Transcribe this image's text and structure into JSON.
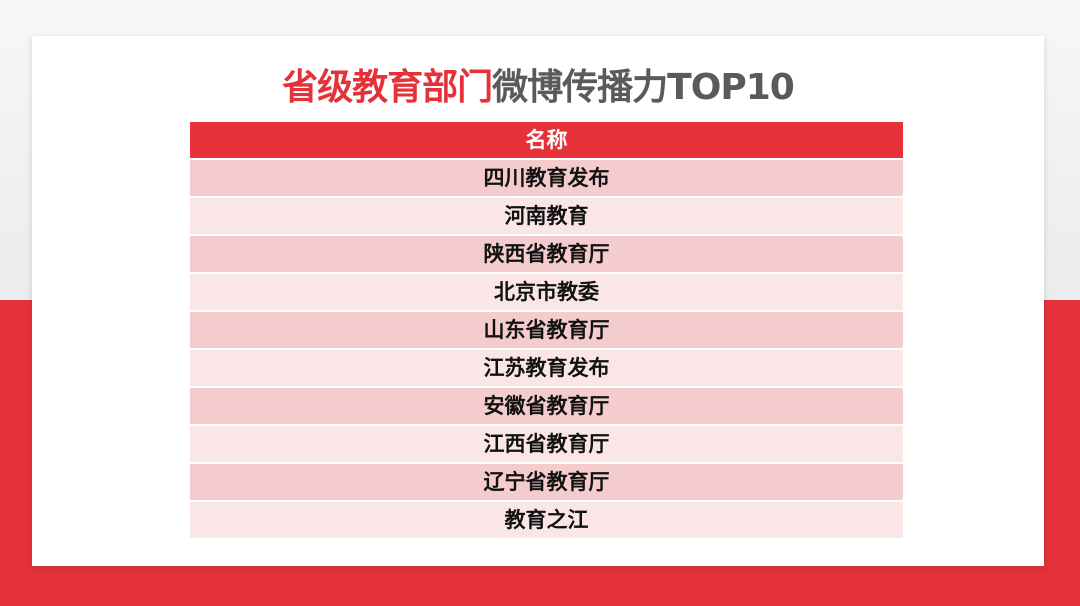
{
  "title": {
    "highlight": "省级教育部门",
    "rest": "微博传播力TOP10"
  },
  "table": {
    "header": "名称",
    "rows": [
      "四川教育发布",
      "河南教育",
      "陕西省教育厅",
      "北京市教委",
      "山东省教育厅",
      "江苏教育发布",
      "安徽省教育厅",
      "江西省教育厅",
      "辽宁省教育厅",
      "教育之江"
    ]
  },
  "colors": {
    "accent": "#e5323a",
    "row_dark": "#f4cccd",
    "row_light": "#fbe6e7"
  }
}
